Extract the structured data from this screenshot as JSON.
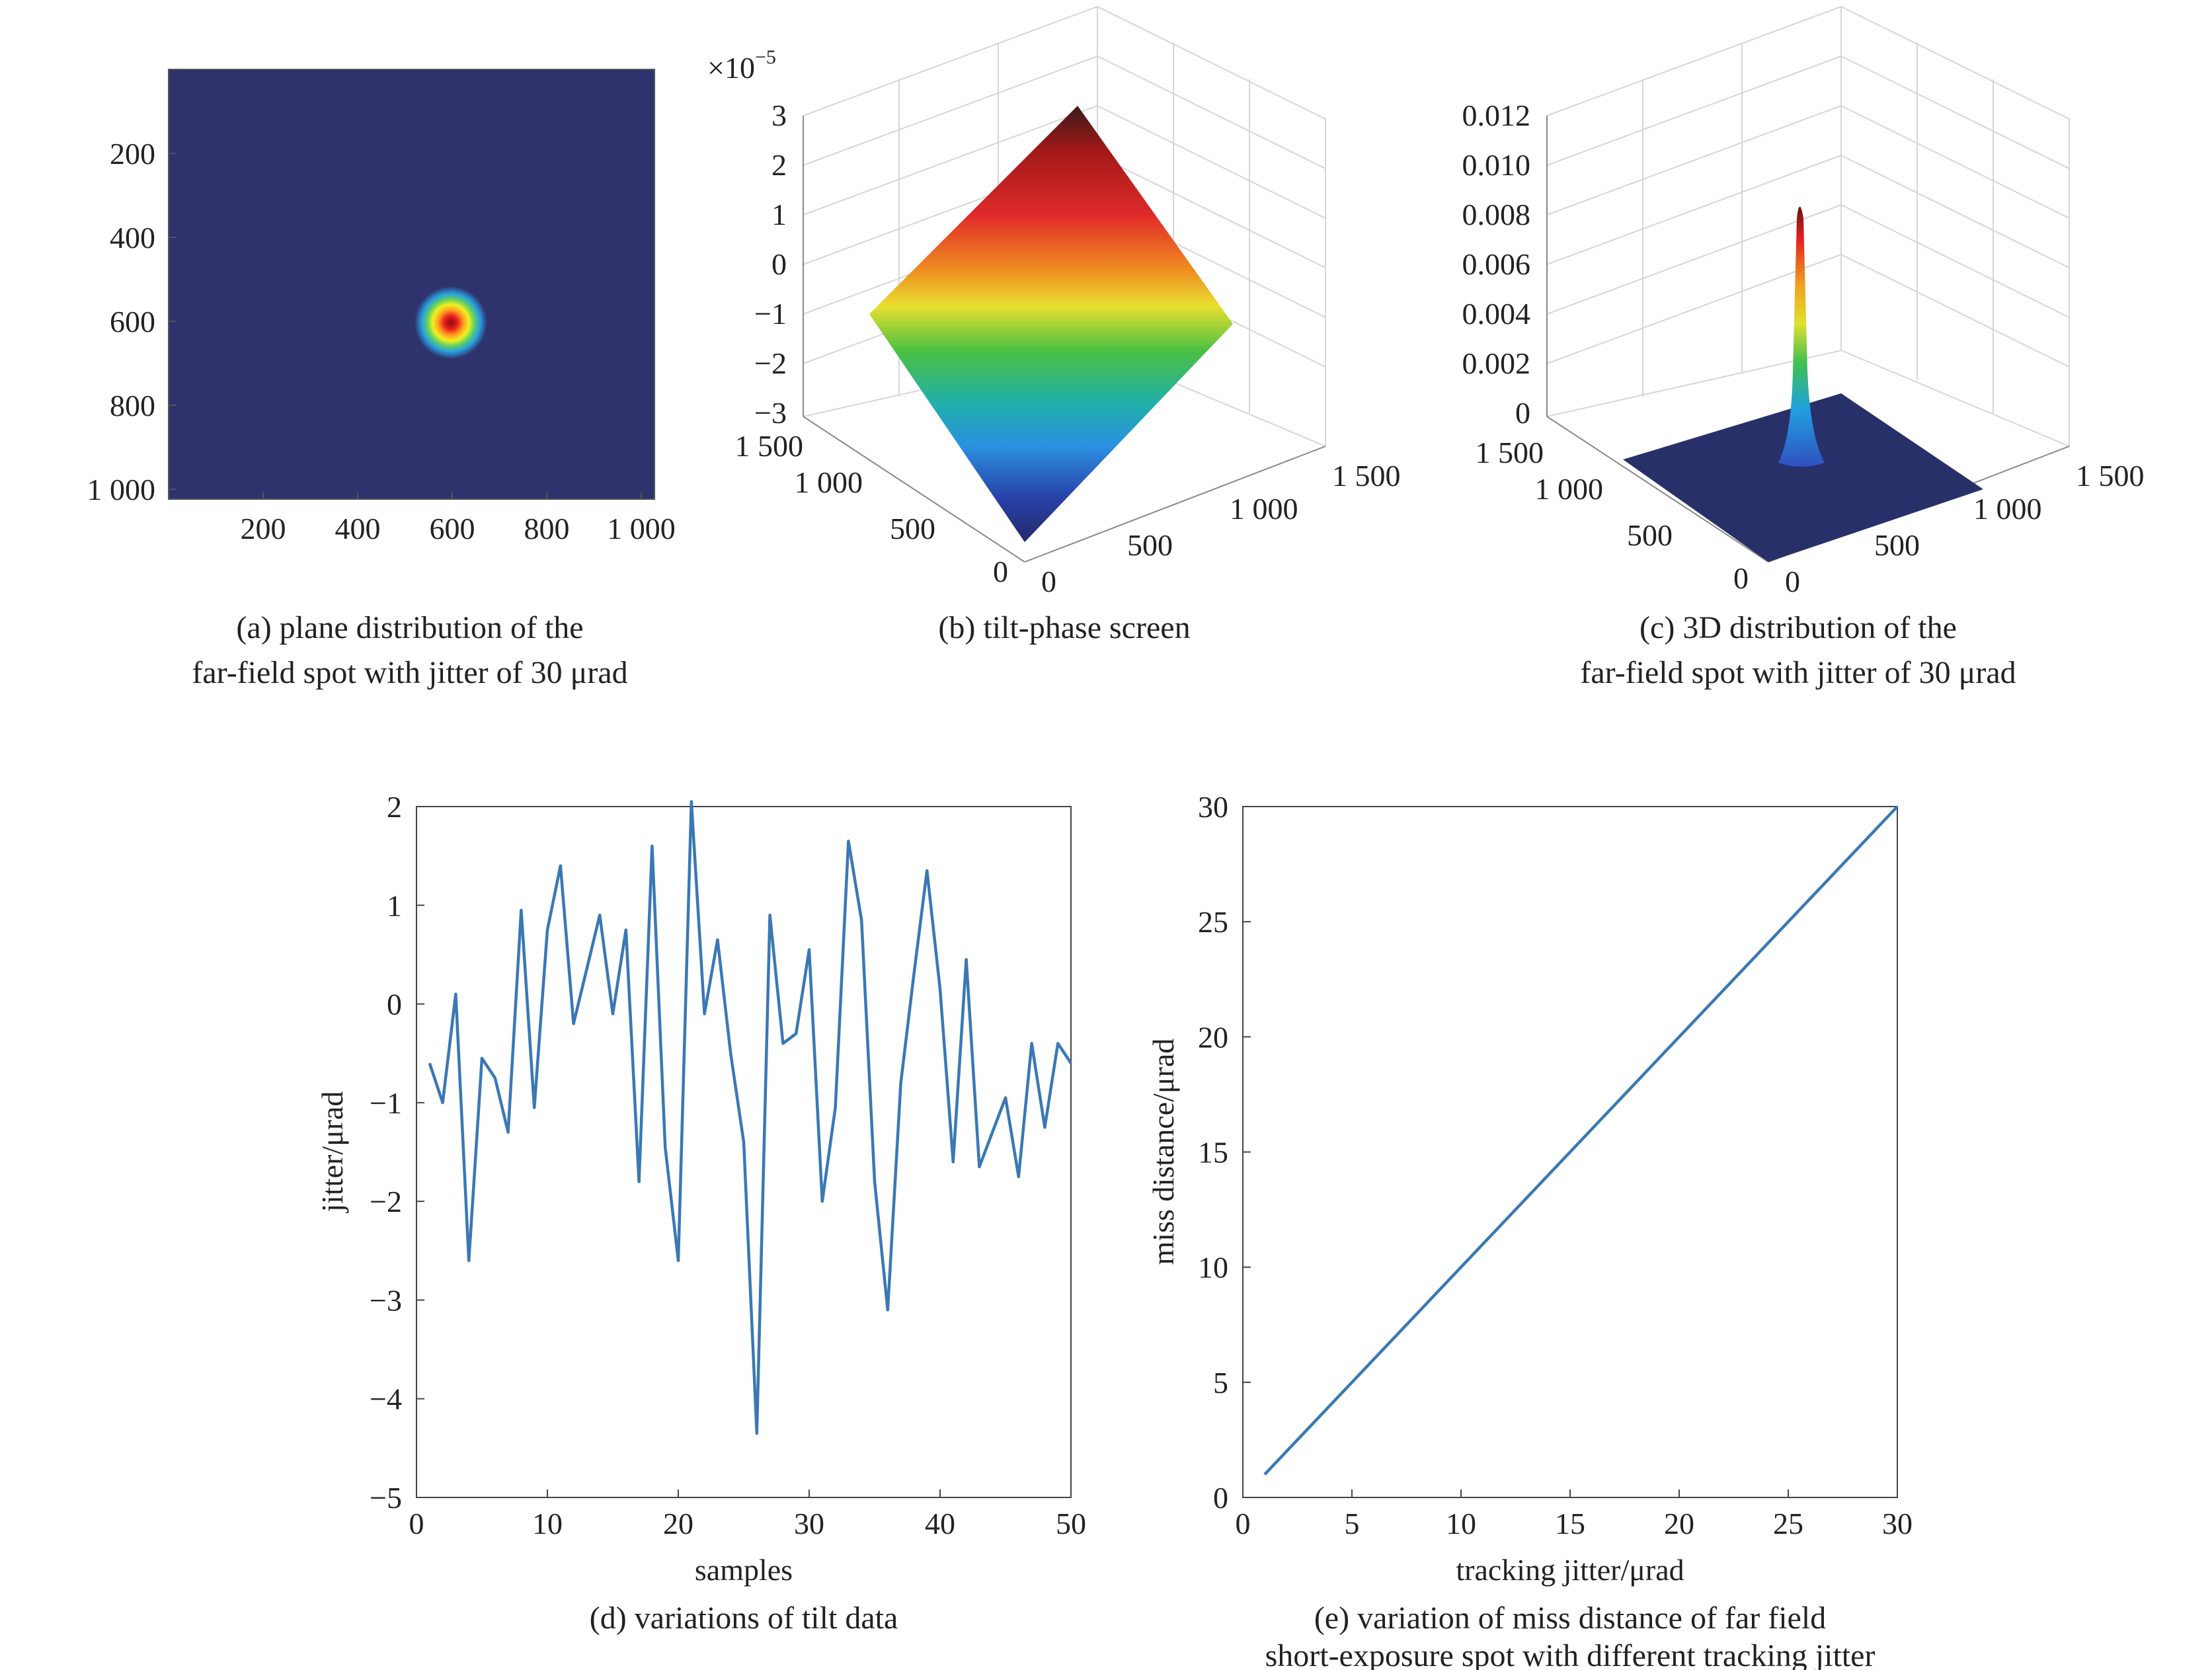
{
  "panels": {
    "a": {
      "caption": [
        "(a) plane distribution of the",
        "far-field spot with jitter of 30 μrad"
      ],
      "x_ticks": [
        "200",
        "400",
        "600",
        "800",
        "1 000"
      ],
      "y_ticks": [
        "200",
        "400",
        "600",
        "800",
        "1 000"
      ],
      "background_color": "#2e336e"
    },
    "b": {
      "caption": [
        "(b) tilt-phase screen"
      ],
      "exponent": "×10",
      "exponent_power": "−5",
      "z_ticks": [
        "3",
        "2",
        "1",
        "0",
        "−1",
        "−2",
        "−3"
      ],
      "left_ticks": [
        "1 500",
        "1 000",
        "500",
        "0"
      ],
      "right_ticks": [
        "0",
        "500",
        "1 000",
        "1 500"
      ]
    },
    "c": {
      "caption": [
        "(c) 3D distribution of the",
        "far-field spot with jitter of 30 μrad"
      ],
      "z_ticks": [
        "0.012",
        "0.010",
        "0.008",
        "0.006",
        "0.004",
        "0.002",
        "0"
      ],
      "left_ticks": [
        "1 500",
        "1 000",
        "500",
        "0"
      ],
      "right_ticks": [
        "0",
        "500",
        "1 000",
        "1 500"
      ]
    },
    "d": {
      "caption": [
        "(d) variations of tilt data"
      ]
    },
    "e": {
      "caption": [
        "(e) variation of miss distance of far field",
        "short-exposure spot with different tracking jitter"
      ]
    }
  },
  "chart_data": [
    {
      "type": "line",
      "panel": "d",
      "xlabel": "samples",
      "ylabel": "jitter/μrad",
      "xlim": [
        0,
        50
      ],
      "ylim": [
        -5,
        2
      ],
      "xticks": [
        0,
        10,
        20,
        30,
        40,
        50
      ],
      "yticks": [
        2,
        1,
        0,
        -1,
        -2,
        -3,
        -4,
        -5
      ],
      "x": [
        1,
        2,
        3,
        4,
        5,
        6,
        7,
        8,
        9,
        10,
        11,
        12,
        13,
        14,
        15,
        16,
        17,
        18,
        19,
        20,
        21,
        22,
        23,
        24,
        25,
        26,
        27,
        28,
        29,
        30,
        31,
        32,
        33,
        34,
        35,
        36,
        37,
        38,
        39,
        40,
        41,
        42,
        43,
        44,
        45,
        46,
        47,
        48,
        49,
        50
      ],
      "y": [
        -0.6,
        -1.0,
        0.1,
        -2.6,
        -0.55,
        -0.75,
        -1.3,
        0.95,
        -1.05,
        0.75,
        1.4,
        -0.2,
        0.35,
        0.9,
        -0.1,
        0.75,
        -1.8,
        1.6,
        -1.45,
        -2.6,
        2.05,
        -0.1,
        0.65,
        -0.5,
        -1.4,
        -4.35,
        0.9,
        -0.4,
        -0.3,
        0.55,
        -2.0,
        -1.05,
        1.65,
        0.85,
        -1.8,
        -3.1,
        -0.8,
        0.3,
        1.35,
        0.15,
        -1.6,
        0.45,
        -1.65,
        -1.3,
        -0.95,
        -1.75,
        -0.4,
        -1.25,
        -0.4,
        -0.6
      ],
      "color": "#3a78b4"
    },
    {
      "type": "line",
      "panel": "e",
      "xlabel": "tracking jitter/μrad",
      "ylabel": "miss distance/μrad",
      "xlim": [
        0,
        30
      ],
      "ylim": [
        0,
        30
      ],
      "xticks": [
        0,
        5,
        10,
        15,
        20,
        25,
        30
      ],
      "yticks": [
        30,
        25,
        20,
        15,
        10,
        5,
        0
      ],
      "x": [
        1,
        30
      ],
      "y": [
        1,
        30
      ],
      "color": "#3a78b4"
    }
  ]
}
